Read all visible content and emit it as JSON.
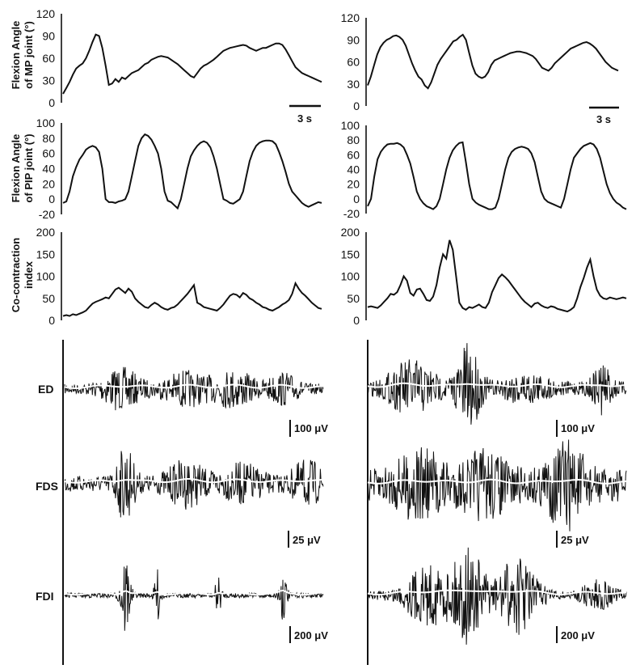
{
  "chart_data": [
    {
      "id": "mp-left",
      "type": "line",
      "ylabel_lines": [
        "Flexion Angle",
        "of MP joint (°)"
      ],
      "yticks": [
        0,
        30,
        60,
        90,
        120
      ],
      "ylim": [
        0,
        120
      ],
      "scalebar_label": "3 s",
      "series": [
        {
          "values": [
            12,
            20,
            28,
            38,
            46,
            50,
            53,
            60,
            70,
            82,
            92,
            90,
            74,
            50,
            24,
            26,
            32,
            28,
            34,
            32,
            36,
            40,
            42,
            44,
            48,
            52,
            54,
            58,
            60,
            62,
            63,
            62,
            61,
            58,
            55,
            52,
            48,
            44,
            40,
            36,
            34,
            40,
            46,
            50,
            52,
            55,
            58,
            62,
            66,
            70,
            72,
            74,
            75,
            76,
            77,
            78,
            77,
            74,
            72,
            70,
            72,
            74,
            74,
            76,
            78,
            80,
            80,
            78,
            72,
            64,
            56,
            48,
            44,
            40,
            38,
            36,
            34,
            32,
            30,
            28
          ]
        }
      ]
    },
    {
      "id": "mp-right",
      "type": "line",
      "ylabel_lines": [],
      "yticks": [
        0,
        30,
        60,
        90,
        120
      ],
      "ylim": [
        0,
        120
      ],
      "scalebar_label": "3 s",
      "series": [
        {
          "values": [
            28,
            40,
            55,
            70,
            80,
            86,
            90,
            92,
            95,
            96,
            94,
            90,
            82,
            70,
            58,
            48,
            40,
            36,
            28,
            24,
            32,
            44,
            56,
            64,
            70,
            76,
            82,
            88,
            90,
            94,
            97,
            90,
            72,
            55,
            44,
            40,
            38,
            40,
            46,
            56,
            62,
            64,
            66,
            68,
            70,
            72,
            73,
            74,
            74,
            73,
            72,
            70,
            68,
            64,
            58,
            52,
            50,
            48,
            52,
            58,
            62,
            66,
            70,
            74,
            78,
            80,
            82,
            84,
            86,
            87,
            85,
            82,
            78,
            72,
            66,
            60,
            56,
            52,
            50,
            48
          ]
        }
      ]
    },
    {
      "id": "pip-left",
      "type": "line",
      "ylabel_lines": [
        "Flexion Angle",
        "of PIP joint (°)"
      ],
      "yticks": [
        -20,
        0,
        20,
        40,
        60,
        80,
        100
      ],
      "ylim": [
        -20,
        100
      ],
      "series": [
        {
          "values": [
            -5,
            -3,
            10,
            30,
            42,
            52,
            58,
            65,
            68,
            70,
            68,
            62,
            40,
            0,
            -4,
            -4,
            -5,
            -3,
            -2,
            0,
            10,
            30,
            50,
            70,
            80,
            85,
            83,
            78,
            70,
            60,
            40,
            10,
            -2,
            -4,
            -8,
            -12,
            0,
            20,
            40,
            56,
            64,
            70,
            74,
            76,
            74,
            68,
            56,
            40,
            20,
            0,
            -2,
            -5,
            -6,
            -3,
            0,
            10,
            30,
            50,
            62,
            70,
            74,
            76,
            77,
            77,
            76,
            72,
            62,
            50,
            36,
            20,
            10,
            5,
            0,
            -5,
            -8,
            -10,
            -8,
            -6,
            -4,
            -5
          ]
        }
      ]
    },
    {
      "id": "pip-right",
      "type": "line",
      "ylabel_lines": [],
      "yticks": [
        -20,
        0,
        20,
        40,
        60,
        80,
        100
      ],
      "ylim": [
        -20,
        100
      ],
      "series": [
        {
          "values": [
            -10,
            0,
            30,
            54,
            64,
            70,
            74,
            75,
            75,
            76,
            74,
            70,
            60,
            48,
            30,
            10,
            0,
            -6,
            -10,
            -12,
            -14,
            -10,
            0,
            20,
            40,
            56,
            66,
            72,
            76,
            77,
            50,
            20,
            0,
            -5,
            -8,
            -10,
            -12,
            -14,
            -14,
            -12,
            0,
            20,
            40,
            56,
            64,
            68,
            70,
            71,
            70,
            68,
            62,
            50,
            30,
            10,
            0,
            -4,
            -6,
            -8,
            -10,
            -12,
            0,
            20,
            40,
            56,
            62,
            68,
            72,
            74,
            76,
            74,
            68,
            56,
            38,
            20,
            8,
            0,
            -5,
            -8,
            -12,
            -14
          ]
        }
      ]
    },
    {
      "id": "cci-left",
      "type": "line",
      "ylabel_lines": [
        "Co-contraction",
        "index"
      ],
      "yticks": [
        0,
        50,
        100,
        150,
        200
      ],
      "ylim": [
        0,
        200
      ],
      "series": [
        {
          "values": [
            10,
            12,
            10,
            14,
            12,
            15,
            18,
            22,
            30,
            38,
            42,
            45,
            48,
            52,
            50,
            60,
            70,
            74,
            68,
            62,
            72,
            65,
            50,
            42,
            36,
            30,
            28,
            35,
            40,
            36,
            30,
            26,
            24,
            28,
            30,
            36,
            44,
            52,
            60,
            70,
            80,
            40,
            36,
            30,
            28,
            26,
            24,
            22,
            28,
            36,
            46,
            56,
            60,
            58,
            52,
            62,
            58,
            50,
            46,
            40,
            36,
            30,
            28,
            24,
            22,
            26,
            30,
            36,
            40,
            46,
            60,
            84,
            72,
            62,
            56,
            48,
            40,
            34,
            28,
            26
          ]
        }
      ]
    },
    {
      "id": "cci-right",
      "type": "line",
      "ylabel_lines": [],
      "yticks": [
        0,
        50,
        100,
        150,
        200
      ],
      "ylim": [
        0,
        200
      ],
      "series": [
        {
          "values": [
            30,
            32,
            30,
            28,
            34,
            42,
            50,
            60,
            58,
            64,
            80,
            100,
            90,
            62,
            56,
            70,
            72,
            60,
            46,
            44,
            54,
            80,
            120,
            150,
            140,
            182,
            160,
            100,
            40,
            28,
            24,
            30,
            28,
            32,
            36,
            30,
            28,
            40,
            64,
            80,
            96,
            104,
            98,
            90,
            80,
            70,
            60,
            50,
            42,
            36,
            30,
            38,
            40,
            34,
            30,
            28,
            32,
            30,
            26,
            24,
            22,
            20,
            24,
            30,
            50,
            76,
            96,
            120,
            138,
            100,
            70,
            56,
            50,
            48,
            52,
            50,
            48,
            50,
            52,
            50
          ]
        }
      ]
    },
    {
      "id": "emg",
      "type": "line",
      "muscles": [
        "ED",
        "FDS",
        "FDI"
      ],
      "scale_labels": {
        "left": [
          "100 μV",
          "25 μV",
          "200 μV"
        ],
        "right": [
          "100 μV",
          "25 μV",
          "200 μV"
        ]
      }
    }
  ]
}
